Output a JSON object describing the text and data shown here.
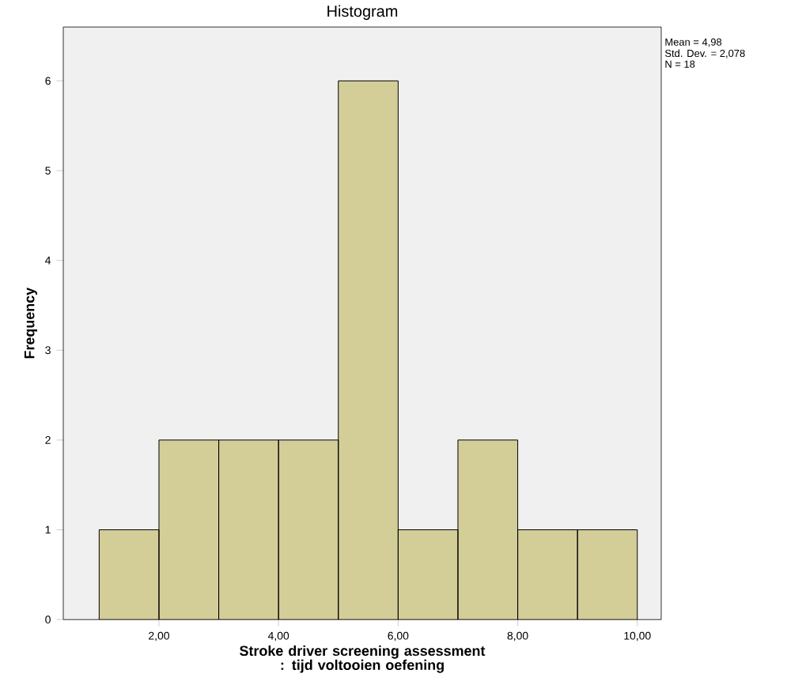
{
  "chart_data": {
    "type": "histogram",
    "title": "Histogram",
    "xlabel": "Stroke driver screening assessment : tijd voltooien oefening",
    "ylabel": "Frequency",
    "annotations": [
      "Mean = 4,98",
      "Std. Dev. = 2,078",
      "N = 18"
    ],
    "bins": [
      1,
      2,
      3,
      4,
      5,
      6,
      7,
      8,
      9,
      10
    ],
    "values": [
      1,
      2,
      2,
      2,
      6,
      1,
      2,
      1,
      1
    ],
    "color": "#d3ce98",
    "xlim": [
      0.4,
      10.4
    ],
    "ylim": [
      0,
      6.6
    ],
    "xticks": [
      {
        "value": 2,
        "label": "2,00"
      },
      {
        "value": 4,
        "label": "4,00"
      },
      {
        "value": 6,
        "label": "6,00"
      },
      {
        "value": 8,
        "label": "8,00"
      },
      {
        "value": 10,
        "label": "10,00"
      }
    ],
    "yticks": [
      0,
      1,
      2,
      3,
      4,
      5,
      6
    ]
  }
}
